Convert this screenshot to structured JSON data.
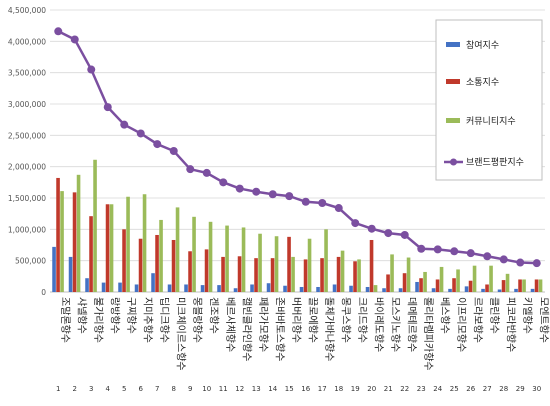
{
  "chart_data": {
    "type": "bar",
    "ylim": [
      0,
      4500000
    ],
    "yticks": [
      "0",
      "500,000",
      "1,000,000",
      "1,500,000",
      "2,000,000",
      "2,500,000",
      "3,000,000",
      "3,500,000",
      "4,000,000",
      "4,500,000"
    ],
    "ytick_values": [
      0,
      500000,
      1000000,
      1500000,
      2000000,
      2500000,
      3000000,
      3500000,
      4000000,
      4500000
    ],
    "legend_position": "right",
    "grid": true,
    "categories": [
      "조말론향수",
      "샤넬향수",
      "불가리향수",
      "랑방향수",
      "구찌향수",
      "지미추향수",
      "딥디크향수",
      "미크체이르스향수",
      "몽블랑향수",
      "겐조향수",
      "베르사체향수",
      "캘빈클라인향수",
      "페라가모향수",
      "존바바토스향수",
      "버버리향수",
      "끌로에향수",
      "돌체가바나향수",
      "몽쿠스향수",
      "크리드향수",
      "바이레도향수",
      "모스키노향수",
      "데메테르향수",
      "롤리타렘피카향수",
      "베스향수",
      "이프리모향수",
      "르라보향수",
      "클린향수",
      "피코라반향수",
      "키엘향수",
      "모엔트향수"
    ],
    "numbers": [
      "1",
      "2",
      "3",
      "4",
      "5",
      "6",
      "7",
      "8",
      "9",
      "10",
      "11",
      "12",
      "13",
      "14",
      "15",
      "16",
      "17",
      "18",
      "19",
      "20",
      "21",
      "22",
      "23",
      "24",
      "25",
      "26",
      "27",
      "28",
      "29",
      "30"
    ],
    "series": [
      {
        "name": "참여지수",
        "color": "#4472c4",
        "values": [
          720000,
          560000,
          220000,
          150000,
          150000,
          120000,
          300000,
          120000,
          120000,
          110000,
          110000,
          60000,
          120000,
          140000,
          100000,
          80000,
          80000,
          120000,
          100000,
          80000,
          60000,
          60000,
          160000,
          60000,
          50000,
          90000,
          50000,
          40000,
          50000,
          50000
        ]
      },
      {
        "name": "소통지수",
        "color": "#c0392b",
        "values": [
          1820000,
          1590000,
          1210000,
          1400000,
          1000000,
          850000,
          910000,
          830000,
          650000,
          680000,
          560000,
          570000,
          540000,
          540000,
          880000,
          520000,
          540000,
          560000,
          490000,
          830000,
          280000,
          300000,
          220000,
          200000,
          220000,
          180000,
          120000,
          190000,
          200000,
          200000
        ]
      },
      {
        "name": "커뮤니티지수",
        "color": "#9bbb59",
        "values": [
          1610000,
          1870000,
          2110000,
          1400000,
          1520000,
          1560000,
          1150000,
          1350000,
          1200000,
          1120000,
          1060000,
          1030000,
          930000,
          890000,
          560000,
          850000,
          1000000,
          660000,
          520000,
          110000,
          600000,
          550000,
          320000,
          400000,
          360000,
          420000,
          420000,
          290000,
          200000,
          200000
        ]
      },
      {
        "name": "브랜드평판지수",
        "color": "#7b4fa0",
        "values": [
          4160000,
          4030000,
          3550000,
          2950000,
          2670000,
          2530000,
          2360000,
          2250000,
          1960000,
          1900000,
          1750000,
          1650000,
          1600000,
          1560000,
          1530000,
          1440000,
          1420000,
          1340000,
          1100000,
          1010000,
          940000,
          910000,
          690000,
          680000,
          650000,
          620000,
          570000,
          520000,
          470000,
          460000
        ]
      }
    ]
  }
}
